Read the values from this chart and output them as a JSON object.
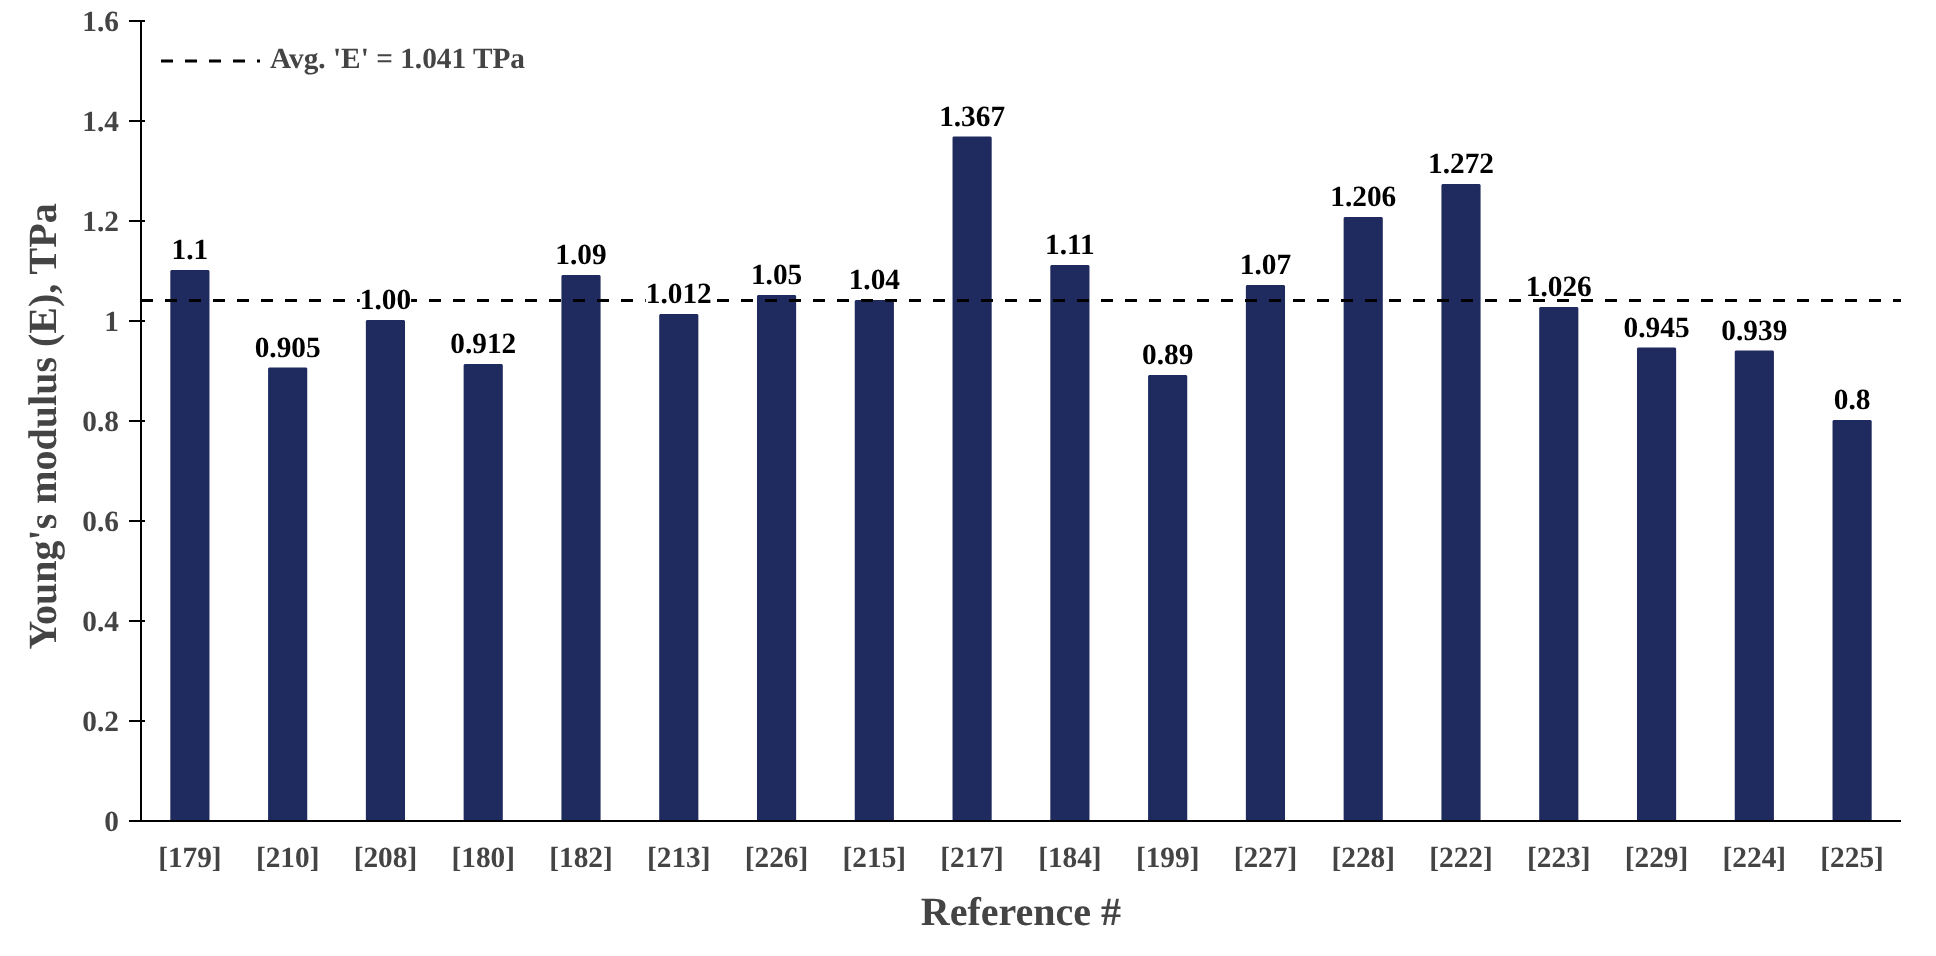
{
  "chart_data": {
    "type": "bar",
    "xlabel": "Reference #",
    "ylabel": "Young's modulus (E),  TPa",
    "categories": [
      "[179]",
      "[210]",
      "[208]",
      "[180]",
      "[182]",
      "[213]",
      "[226]",
      "[215]",
      "[217]",
      "[184]",
      "[199]",
      "[227]",
      "[228]",
      "[222]",
      "[223]",
      "[229]",
      "[224]",
      "[225]"
    ],
    "values": [
      1.1,
      0.905,
      1.0,
      0.912,
      1.09,
      1.012,
      1.05,
      1.04,
      1.367,
      1.11,
      0.89,
      1.07,
      1.206,
      1.272,
      1.026,
      0.945,
      0.939,
      0.8
    ],
    "value_labels": [
      "1.1",
      "0.905",
      "1.00",
      "0.912",
      "1.09",
      "1.012",
      "1.05",
      "1.04",
      "1.367",
      "1.11",
      "0.89",
      "1.07",
      "1.206",
      "1.272",
      "1.026",
      "0.945",
      "0.939",
      "0.8"
    ],
    "color": "#1f2a5e",
    "ylim": [
      0,
      1.6
    ],
    "yticks": [
      0,
      0.2,
      0.4,
      0.6,
      0.8,
      1,
      1.2,
      1.4,
      1.6
    ],
    "ref_lines": [
      {
        "axis": "y",
        "value": 1.041,
        "label": "Avg. 'E' = 1.041 TPa",
        "line_style": "dashed",
        "color": "#000000"
      }
    ],
    "grid": false,
    "legend": "top left"
  }
}
